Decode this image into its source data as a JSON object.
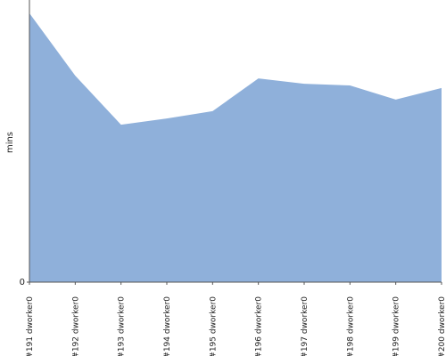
{
  "chart_data": {
    "type": "area",
    "ylabel": "mins",
    "categories": [
      "#191 dworker0",
      "#192 dworker0",
      "#193 dworker0",
      "#194 dworker0",
      "#195 dworker0",
      "#196 dworker0",
      "#197 dworker0",
      "#198 dworker0",
      "#199 dworker0",
      "#200 dworker0"
    ],
    "values": [
      9.53,
      7.32,
      5.58,
      5.8,
      6.06,
      7.22,
      7.03,
      6.97,
      6.47,
      6.88
    ],
    "color": "#8fb0da",
    "ylim": [
      0,
      10
    ],
    "yticks": [
      0
    ]
  }
}
